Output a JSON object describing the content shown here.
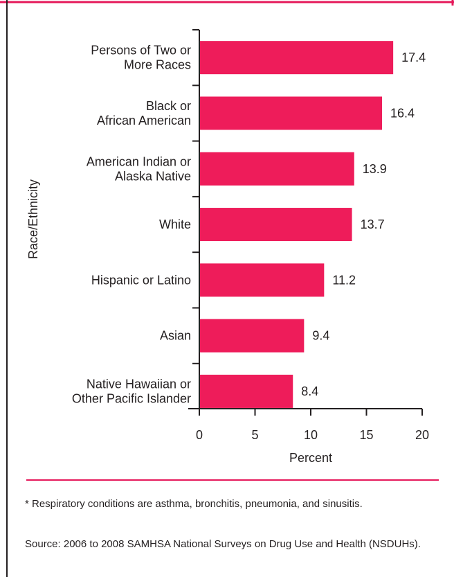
{
  "chart_data": {
    "type": "bar",
    "orientation": "horizontal",
    "categories": [
      [
        "Persons of Two or",
        "More Races"
      ],
      [
        "Black or",
        "African American"
      ],
      [
        "American Indian or",
        "Alaska Native"
      ],
      [
        "White"
      ],
      [
        "Hispanic or Latino"
      ],
      [
        "Asian"
      ],
      [
        "Native Hawaiian or",
        "Other Pacific Islander"
      ]
    ],
    "values": [
      17.4,
      16.4,
      13.9,
      13.7,
      11.2,
      9.4,
      8.4
    ],
    "value_labels": [
      "17.4",
      "16.4",
      "13.9",
      "13.7",
      "11.2",
      "9.4",
      "8.4"
    ],
    "xlabel": "Percent",
    "ylabel": "Race/Ethnicity",
    "xlim": [
      0,
      20
    ],
    "xticks": [
      "0",
      "5",
      "10",
      "15",
      "20"
    ],
    "bar_color": "#ee1c5a",
    "accent_color": "#e5185a",
    "grid": false
  },
  "footnotes": {
    "note": "* Respiratory conditions are asthma, bronchitis, pneumonia, and sinusitis.",
    "source": "Source: 2006 to 2008 SAMHSA National Surveys on Drug Use and Health (NSDUHs)."
  }
}
